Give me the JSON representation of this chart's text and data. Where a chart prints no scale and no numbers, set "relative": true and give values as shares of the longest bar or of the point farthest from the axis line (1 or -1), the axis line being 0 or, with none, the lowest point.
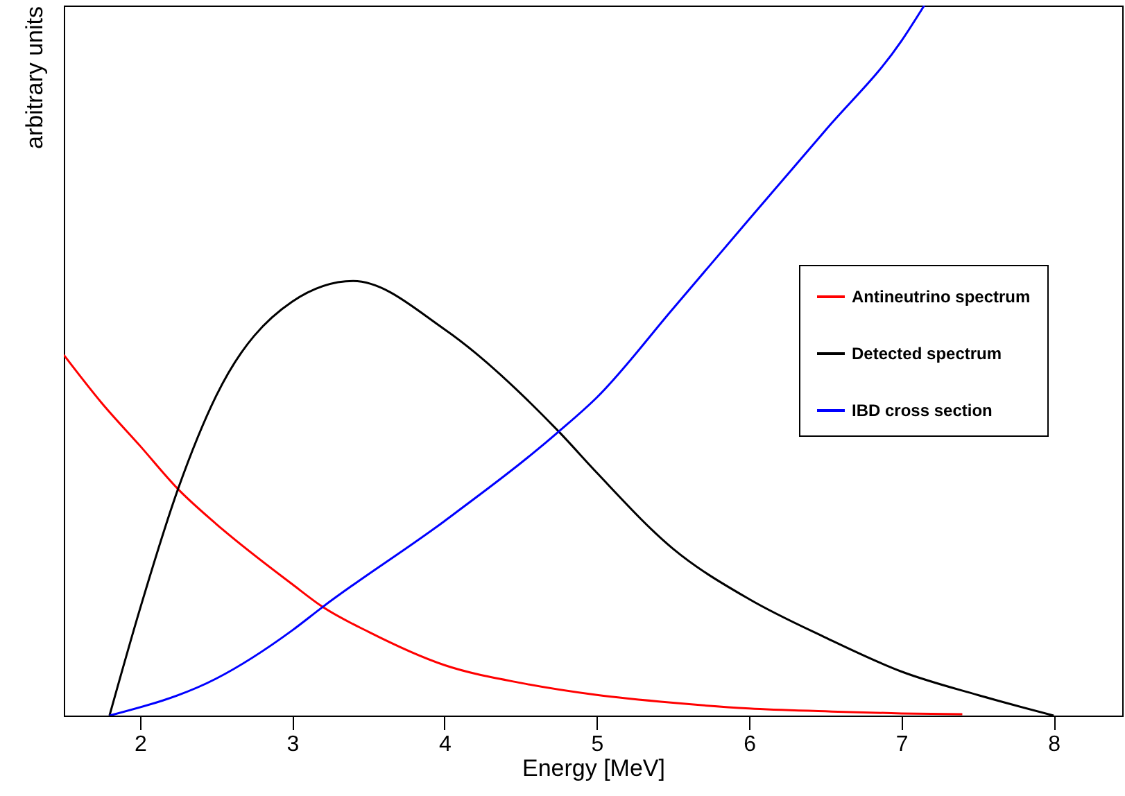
{
  "chart_data": {
    "type": "line",
    "xlabel": "Energy [MeV]",
    "ylabel": "arbitrary units",
    "relative": true,
    "xlim": [
      1.5,
      8.45
    ],
    "xticks": [
      2,
      3,
      4,
      5,
      6,
      7,
      8
    ],
    "grid": false,
    "legend": "right",
    "marker": "none",
    "line_style": "solid",
    "series": [
      {
        "name": "Antineutrino spectrum",
        "color": "#ff0000",
        "x": [
          1.5,
          1.75,
          2.0,
          2.25,
          2.5,
          3.0,
          3.2,
          3.5,
          4.0,
          4.5,
          5.0,
          5.5,
          6.0,
          6.5,
          7.0,
          7.4
        ],
        "values": [
          0.508,
          0.44,
          0.38,
          0.319,
          0.27,
          0.185,
          0.153,
          0.118,
          0.071,
          0.046,
          0.029,
          0.018,
          0.01,
          0.006,
          0.003,
          0.002
        ]
      },
      {
        "name": "Detected spectrum",
        "color": "#000000",
        "x": [
          1.8,
          2.0,
          2.25,
          2.5,
          3.0,
          3.4,
          4.0,
          4.75,
          5.0,
          5.5,
          6.0,
          6.5,
          7.0,
          7.5,
          8.0
        ],
        "values": [
          0,
          0.15,
          0.319,
          0.45,
          0.583,
          0.612,
          0.544,
          0.4,
          0.342,
          0.235,
          0.164,
          0.11,
          0.062,
          0.029,
          0
        ]
      },
      {
        "name": "IBD cross section",
        "color": "#0000ff",
        "x": [
          1.8,
          2.5,
          3.0,
          3.2,
          4.0,
          4.75,
          5.0,
          5.5,
          6.0,
          6.5,
          7.0,
          7.15
        ],
        "values": [
          0,
          0.052,
          0.12,
          0.153,
          0.274,
          0.4,
          0.448,
          0.573,
          0.699,
          0.824,
          0.95,
          1
        ]
      }
    ]
  }
}
